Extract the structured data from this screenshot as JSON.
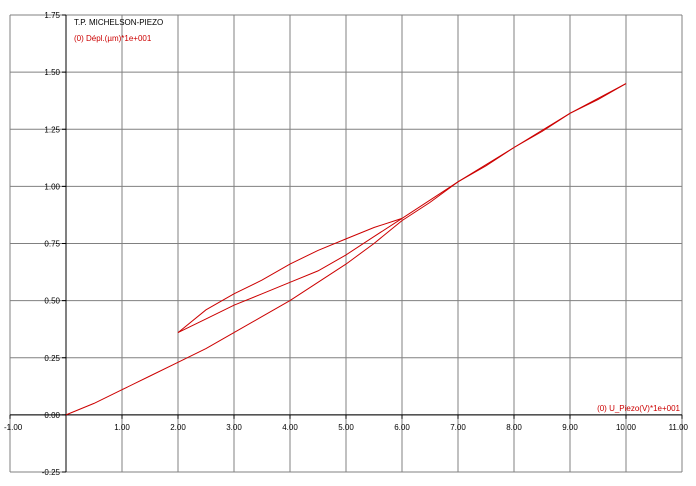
{
  "chart_data": {
    "type": "line",
    "title": "T.P. MICHELSON-PIEZO",
    "ylabel": "(0) Dépl.(µm)*1e+001",
    "xlabel": "(0) U_Piezo(V)*1e+001",
    "xlim": [
      -1.0,
      11.0
    ],
    "ylim": [
      -0.25,
      1.75
    ],
    "x_ticks": [
      "-1.00",
      "1.00",
      "2.00",
      "3.00",
      "4.00",
      "5.00",
      "6.00",
      "7.00",
      "8.00",
      "9.00",
      "10.00",
      "11.00"
    ],
    "y_ticks": [
      "1.75",
      "1.50",
      "1.25",
      "1.00",
      "0.75",
      "0.50",
      "0.25",
      "0.00",
      "-0.25"
    ],
    "x_tick_values": [
      -1,
      1,
      2,
      3,
      4,
      5,
      6,
      7,
      8,
      9,
      10,
      11
    ],
    "y_tick_values": [
      1.75,
      1.5,
      1.25,
      1.0,
      0.75,
      0.5,
      0.25,
      0.0,
      -0.25
    ],
    "grid": true,
    "series_color": "#cc0000",
    "series": [
      {
        "x": [
          0.0,
          0.5,
          1.0,
          1.5,
          2.0,
          2.5,
          3.0,
          3.5,
          4.0,
          4.5,
          5.0,
          5.5,
          6.0,
          6.5,
          7.0,
          7.5,
          8.0,
          8.5,
          9.0,
          9.5,
          10.0
        ],
        "y": [
          0.0,
          0.05,
          0.11,
          0.17,
          0.23,
          0.29,
          0.36,
          0.43,
          0.5,
          0.58,
          0.66,
          0.75,
          0.85,
          0.93,
          1.02,
          1.09,
          1.17,
          1.24,
          1.32,
          1.38,
          1.45
        ]
      },
      {
        "x": [
          10.0,
          9.0,
          8.0,
          7.0,
          6.0,
          5.5,
          5.0,
          4.5,
          4.0,
          3.5,
          3.0,
          2.5,
          2.0
        ],
        "y": [
          1.45,
          1.32,
          1.17,
          1.02,
          0.86,
          0.82,
          0.77,
          0.72,
          0.66,
          0.59,
          0.53,
          0.46,
          0.36
        ]
      },
      {
        "x": [
          2.0,
          2.5,
          3.0,
          3.5,
          4.0,
          4.5,
          5.0,
          5.5,
          6.0
        ],
        "y": [
          0.36,
          0.42,
          0.48,
          0.53,
          0.58,
          0.63,
          0.7,
          0.78,
          0.86
        ]
      }
    ]
  }
}
